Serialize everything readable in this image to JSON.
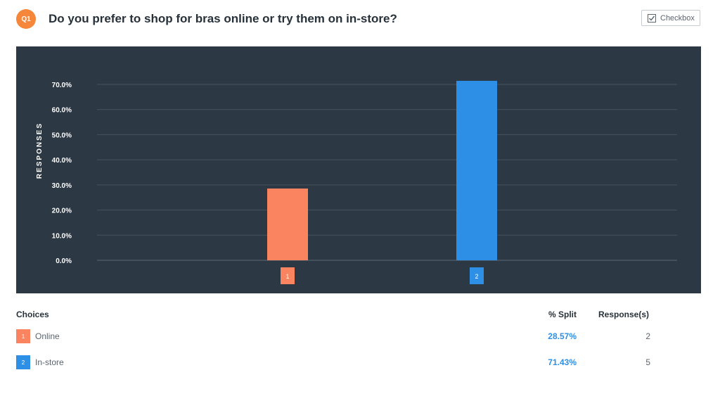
{
  "question": {
    "badge": "Q1",
    "title": "Do you prefer to shop for bras online or try them on in-store?"
  },
  "question_type": {
    "label": "Checkbox",
    "icon": "checkbox-icon"
  },
  "table": {
    "headers": {
      "choices": "Choices",
      "split": "% Split",
      "responses": "Response(s)"
    },
    "rows": [
      {
        "index": "1",
        "label": "Online",
        "split": "28.57%",
        "responses": "2",
        "color": "#fb8460"
      },
      {
        "index": "2",
        "label": "In-store",
        "split": "71.43%",
        "responses": "5",
        "color": "#2e8fe6"
      }
    ]
  },
  "chart_data": {
    "type": "bar",
    "categories": [
      "1",
      "2"
    ],
    "values": [
      28.57,
      71.43
    ],
    "colors": [
      "#fb8460",
      "#2e8fe6"
    ],
    "ylabel": "RESPONSES",
    "ylim": [
      0,
      70
    ],
    "yticks": [
      "0.0%",
      "10.0%",
      "20.0%",
      "30.0%",
      "40.0%",
      "50.0%",
      "60.0%",
      "70.0%"
    ],
    "grid": true,
    "background": "#2c3844"
  }
}
